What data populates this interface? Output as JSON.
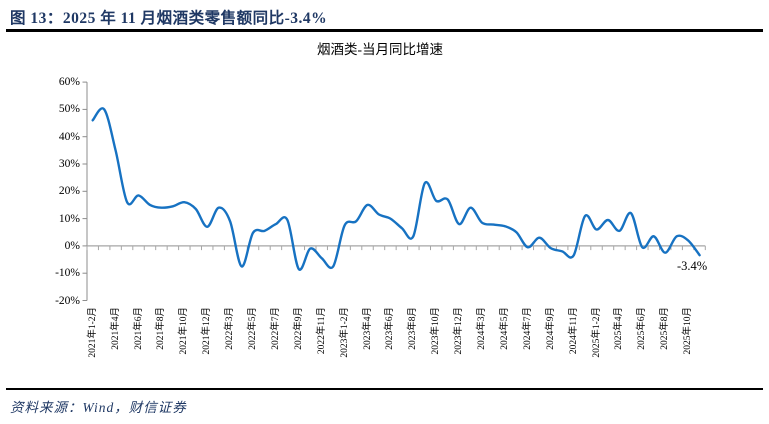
{
  "figure": {
    "title": "图 13：2025 年 11 月烟酒类零售额同比-3.4%",
    "source": "资料来源：Wind，财信证券"
  },
  "chart_data": {
    "type": "line",
    "title": "烟酒类-当月同比增速",
    "smoothed": true,
    "legend": "none",
    "grid": "zero-line-only",
    "ylim": [
      -20,
      60
    ],
    "y_tick_interval": 10,
    "y_ticks": [
      "60%",
      "50%",
      "40%",
      "30%",
      "20%",
      "10%",
      "0%",
      "-10%",
      "-20%"
    ],
    "x": [
      "2021年1-2月",
      "2021年3月",
      "2021年4月",
      "2021年5月",
      "2021年6月",
      "2021年7月",
      "2021年8月",
      "2021年9月",
      "2021年10月",
      "2021年11月",
      "2021年12月",
      "2022年1-2月",
      "2022年3月",
      "2022年4月",
      "2022年5月",
      "2022年6月",
      "2022年7月",
      "2022年8月",
      "2022年9月",
      "2022年10月",
      "2022年11月",
      "2022年12月",
      "2023年1-2月",
      "2023年3月",
      "2023年4月",
      "2023年5月",
      "2023年6月",
      "2023年7月",
      "2023年8月",
      "2023年9月",
      "2023年10月",
      "2023年11月",
      "2023年12月",
      "2024年1-2月",
      "2024年3月",
      "2024年4月",
      "2024年5月",
      "2024年6月",
      "2024年7月",
      "2024年8月",
      "2024年9月",
      "2024年10月",
      "2024年11月",
      "2024年12月",
      "2025年1-2月",
      "2025年3月",
      "2025年4月",
      "2025年5月",
      "2025年6月",
      "2025年7月",
      "2025年8月",
      "2025年9月",
      "2025年10月",
      "2025年11月"
    ],
    "x_tick_labels": [
      "2021年1-2月",
      "2021年4月",
      "2021年6月",
      "2021年8月",
      "2021年10月",
      "2021年12月",
      "2022年3月",
      "2022年5月",
      "2022年7月",
      "2022年9月",
      "2022年11月",
      "2023年1-2月",
      "2023年4月",
      "2023年6月",
      "2023年8月",
      "2023年10月",
      "2023年12月",
      "2024年3月",
      "2024年5月",
      "2024年7月",
      "2024年9月",
      "2024年11月",
      "2025年1-2月",
      "2025年4月",
      "2025年6月",
      "2025年8月",
      "2025年10月"
    ],
    "series": [
      {
        "name": "烟酒类-当月同比增速",
        "unit": "%",
        "values": [
          46,
          50,
          35,
          16,
          18.5,
          15,
          14,
          14.5,
          16,
          13.5,
          7,
          14,
          9,
          -7.5,
          4.8,
          5.5,
          8,
          9.5,
          -8.5,
          -1,
          -4.5,
          -7.5,
          7.5,
          9,
          15,
          11.5,
          10,
          6.5,
          3.5,
          23,
          16.5,
          17,
          8,
          14,
          8.5,
          7.8,
          7.2,
          5,
          -0.5,
          3,
          -0.8,
          -2,
          -3.5,
          11,
          6,
          9.5,
          5.5,
          12,
          -0.5,
          3.5,
          -2.5,
          3.5,
          2,
          -3.4
        ]
      }
    ],
    "annotation": {
      "text": "-3.4%",
      "x": "2025年11月"
    },
    "colors": {
      "line": "#1772C2",
      "value_axis": "#8C8C8C",
      "zero_axis": "#A6A6A6",
      "title_text": "#1F3864"
    }
  }
}
